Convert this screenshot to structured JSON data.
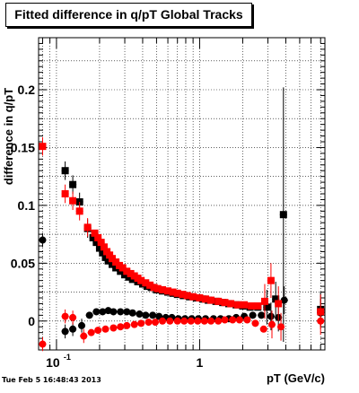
{
  "title": "Fitted difference in q/pT  Global Tracks",
  "timestamp": "Tue Feb  5 16:48:43 2013",
  "chart_data": {
    "type": "scatter",
    "xlabel": "pT (GeV/c)",
    "ylabel": "difference in q/pT",
    "xscale": "log",
    "xlim": [
      0.075,
      7.5
    ],
    "ylim": [
      -0.025,
      0.245
    ],
    "grid": true,
    "xticks": [
      {
        "value": 0.1,
        "label": "10",
        "sup": "-1"
      },
      {
        "value": 1,
        "label": "1",
        "sup": ""
      }
    ],
    "yticks": [
      {
        "value": 0,
        "label": "0"
      },
      {
        "value": 0.05,
        "label": "0.05"
      },
      {
        "value": 0.1,
        "label": "0.1"
      },
      {
        "value": 0.15,
        "label": "0.15"
      },
      {
        "value": 0.2,
        "label": "0.2"
      }
    ],
    "series": [
      {
        "color": "#000000",
        "square": [
          [
            0.115,
            0.13
          ],
          [
            0.13,
            0.118
          ],
          [
            0.145,
            0.103
          ],
          [
            0.165,
            0.08
          ],
          [
            0.18,
            0.072
          ],
          [
            0.19,
            0.068
          ],
          [
            0.2,
            0.063
          ],
          [
            0.21,
            0.059
          ],
          [
            0.22,
            0.055
          ],
          [
            0.23,
            0.052
          ],
          [
            0.245,
            0.049
          ],
          [
            0.26,
            0.046
          ],
          [
            0.28,
            0.043
          ],
          [
            0.3,
            0.04
          ],
          [
            0.32,
            0.038
          ],
          [
            0.34,
            0.036
          ],
          [
            0.37,
            0.034
          ],
          [
            0.4,
            0.032
          ],
          [
            0.43,
            0.03
          ],
          [
            0.46,
            0.029
          ],
          [
            0.5,
            0.027
          ],
          [
            0.55,
            0.026
          ],
          [
            0.6,
            0.025
          ],
          [
            0.65,
            0.024
          ],
          [
            0.7,
            0.023
          ],
          [
            0.77,
            0.022
          ],
          [
            0.85,
            0.021
          ],
          [
            0.95,
            0.02
          ],
          [
            1.05,
            0.019
          ],
          [
            1.15,
            0.018
          ],
          [
            1.3,
            0.017
          ],
          [
            1.45,
            0.016
          ],
          [
            1.6,
            0.015
          ],
          [
            1.8,
            0.014
          ],
          [
            2.0,
            0.013
          ],
          [
            2.25,
            0.012
          ],
          [
            2.55,
            0.012
          ],
          [
            2.95,
            0.012
          ],
          [
            3.4,
            0.019
          ],
          [
            3.85,
            0.092
          ],
          [
            7.0,
            0.01
          ]
        ],
        "circle": [
          [
            0.08,
            0.07
          ],
          [
            0.115,
            -0.009
          ],
          [
            0.13,
            -0.007
          ],
          [
            0.15,
            -0.004
          ],
          [
            0.17,
            0.005
          ],
          [
            0.19,
            0.008
          ],
          [
            0.21,
            0.008
          ],
          [
            0.23,
            0.009
          ],
          [
            0.25,
            0.008
          ],
          [
            0.28,
            0.008
          ],
          [
            0.31,
            0.008
          ],
          [
            0.34,
            0.007
          ],
          [
            0.38,
            0.006
          ],
          [
            0.42,
            0.005
          ],
          [
            0.47,
            0.005
          ],
          [
            0.52,
            0.004
          ],
          [
            0.58,
            0.003
          ],
          [
            0.64,
            0.003
          ],
          [
            0.71,
            0.002
          ],
          [
            0.79,
            0.002
          ],
          [
            0.88,
            0.002
          ],
          [
            0.98,
            0.002
          ],
          [
            1.1,
            0.002
          ],
          [
            1.25,
            0.002
          ],
          [
            1.4,
            0.002
          ],
          [
            1.6,
            0.002
          ],
          [
            1.8,
            0.003
          ],
          [
            2.05,
            0.004
          ],
          [
            2.35,
            0.005
          ],
          [
            2.7,
            0.005
          ],
          [
            3.15,
            0.004
          ],
          [
            3.55,
            0.003
          ],
          [
            3.9,
            0.018
          ],
          [
            7.0,
            0.007
          ]
        ]
      },
      {
        "color": "#ff0000",
        "square": [
          [
            0.08,
            0.151
          ],
          [
            0.115,
            0.11
          ],
          [
            0.13,
            0.104
          ],
          [
            0.145,
            0.095
          ],
          [
            0.165,
            0.081
          ],
          [
            0.185,
            0.076
          ],
          [
            0.195,
            0.072
          ],
          [
            0.205,
            0.068
          ],
          [
            0.215,
            0.064
          ],
          [
            0.225,
            0.06
          ],
          [
            0.235,
            0.057
          ],
          [
            0.245,
            0.054
          ],
          [
            0.26,
            0.051
          ],
          [
            0.275,
            0.048
          ],
          [
            0.29,
            0.046
          ],
          [
            0.31,
            0.043
          ],
          [
            0.33,
            0.041
          ],
          [
            0.35,
            0.039
          ],
          [
            0.37,
            0.037
          ],
          [
            0.39,
            0.035
          ],
          [
            0.42,
            0.033
          ],
          [
            0.45,
            0.031
          ],
          [
            0.48,
            0.029
          ],
          [
            0.51,
            0.028
          ],
          [
            0.55,
            0.027
          ],
          [
            0.6,
            0.026
          ],
          [
            0.65,
            0.025
          ],
          [
            0.7,
            0.024
          ],
          [
            0.76,
            0.023
          ],
          [
            0.82,
            0.022
          ],
          [
            0.9,
            0.021
          ],
          [
            1.0,
            0.02
          ],
          [
            1.1,
            0.019
          ],
          [
            1.2,
            0.018
          ],
          [
            1.35,
            0.017
          ],
          [
            1.5,
            0.016
          ],
          [
            1.65,
            0.015
          ],
          [
            1.85,
            0.014
          ],
          [
            2.05,
            0.014
          ],
          [
            2.3,
            0.013
          ],
          [
            2.55,
            0.013
          ],
          [
            2.85,
            0.017
          ],
          [
            3.15,
            0.035
          ],
          [
            3.55,
            0.015
          ],
          [
            7.0,
            0.008
          ]
        ],
        "circle": [
          [
            0.08,
            -0.02
          ],
          [
            0.115,
            0.004
          ],
          [
            0.13,
            0.003
          ],
          [
            0.155,
            -0.013
          ],
          [
            0.175,
            -0.01
          ],
          [
            0.195,
            -0.008
          ],
          [
            0.22,
            -0.007
          ],
          [
            0.25,
            -0.006
          ],
          [
            0.28,
            -0.005
          ],
          [
            0.31,
            -0.004
          ],
          [
            0.35,
            -0.003
          ],
          [
            0.39,
            -0.002
          ],
          [
            0.44,
            -0.001
          ],
          [
            0.49,
            -0.001
          ],
          [
            0.55,
            0.0
          ],
          [
            0.62,
            0.0
          ],
          [
            0.7,
            0.0
          ],
          [
            0.78,
            0.0
          ],
          [
            0.87,
            0.0
          ],
          [
            0.97,
            0.0
          ],
          [
            1.08,
            0.0
          ],
          [
            1.2,
            0.0
          ],
          [
            1.35,
            0.0
          ],
          [
            1.5,
            0.001
          ],
          [
            1.7,
            0.001
          ],
          [
            1.9,
            0.001
          ],
          [
            2.15,
            0.001
          ],
          [
            2.45,
            -0.002
          ],
          [
            2.8,
            -0.007
          ],
          [
            3.2,
            -0.003
          ],
          [
            3.7,
            -0.005
          ],
          [
            7.0,
            0.0
          ]
        ]
      }
    ]
  }
}
